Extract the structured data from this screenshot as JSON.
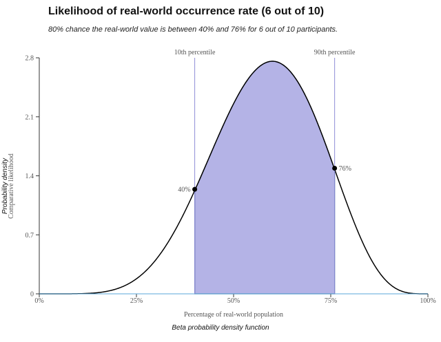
{
  "header": {
    "title": "Likelihood of real-world occurrence rate (6 out of 10)",
    "subtitle": "80% chance the real-world value is between 40% and 76% for 6 out of 10 participants."
  },
  "caption": "Beta probability density function",
  "chart_data": {
    "type": "area",
    "distribution": "beta",
    "params": {
      "alpha": 7,
      "beta": 5
    },
    "xlabel": "Percentage of real-world population",
    "ylabel": "Probability density",
    "ylabel_secondary": "Comparative likelihood",
    "xlim": [
      0,
      1
    ],
    "ylim": [
      0,
      2.8
    ],
    "xticks": [
      0,
      0.25,
      0.5,
      0.75,
      1
    ],
    "xtick_labels": [
      "0%",
      "25%",
      "50%",
      "75%",
      "100%"
    ],
    "yticks": [
      0,
      0.7,
      1.4,
      2.1,
      2.8
    ],
    "ytick_labels": [
      "0",
      "0.7",
      "1.4",
      "2.1",
      "2.8"
    ],
    "shaded_interval": [
      0.4,
      0.76
    ],
    "markers": [
      {
        "x": 0.4,
        "y": 1.24,
        "label": "40%"
      },
      {
        "x": 0.76,
        "y": 1.49,
        "label": "76%"
      }
    ],
    "percentile_lines": [
      {
        "x": 0.4,
        "label": "10th percentile"
      },
      {
        "x": 0.76,
        "label": "90th percentile"
      }
    ],
    "colors": {
      "fill": "#b4b3e6",
      "fill_stroke": "#3f6694",
      "curve": "#000000",
      "percentile_line": "#8e8cd6",
      "baseline": "#5aa7d8"
    }
  }
}
